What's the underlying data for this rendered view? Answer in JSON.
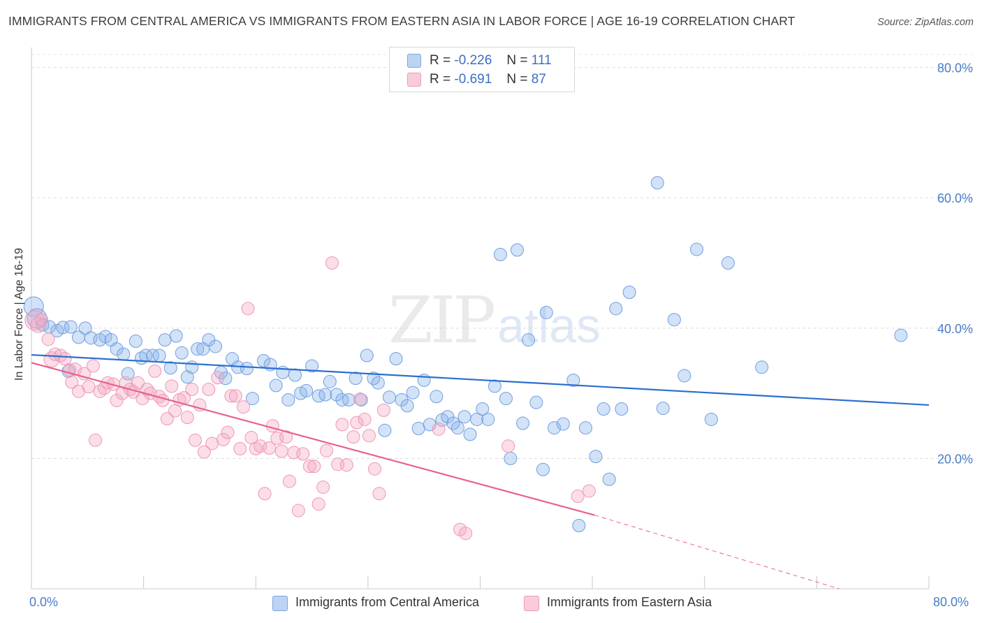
{
  "header": {
    "title": "IMMIGRANTS FROM CENTRAL AMERICA VS IMMIGRANTS FROM EASTERN ASIA IN LABOR FORCE | AGE 16-19 CORRELATION CHART",
    "source": "Source: ZipAtlas.com"
  },
  "watermark": {
    "zip": "ZIP",
    "atlas": "atlas"
  },
  "legend": {
    "r_label": "R =",
    "n_label": "N =",
    "rows": [
      {
        "r": "-0.226",
        "n": "111"
      },
      {
        "r": "-0.691",
        "n": "87"
      }
    ]
  },
  "chart_data": {
    "type": "scatter",
    "title": "IMMIGRANTS FROM CENTRAL AMERICA VS IMMIGRANTS FROM EASTERN ASIA IN LABOR FORCE | AGE 16-19 CORRELATION CHART",
    "xlabel": "",
    "ylabel": "In Labor Force | Age 16-19",
    "xlim": [
      0,
      80
    ],
    "ylim": [
      0,
      82
    ],
    "x_tick_labels": [
      "0.0%",
      "80.0%"
    ],
    "y_ticks": [
      20,
      40,
      60,
      80
    ],
    "y_tick_labels": [
      "20.0%",
      "40.0%",
      "60.0%",
      "80.0%"
    ],
    "grid": true,
    "legend_position": "top-center",
    "colors": {
      "central_america": "#8ab4ea",
      "eastern_asia": "#f4a7c0",
      "trend_central_america": "#2b6fcf",
      "trend_eastern_asia": "#e8618c",
      "tick_text": "#4a7cc7"
    },
    "series": [
      {
        "name": "Immigrants from Central America",
        "r": -0.226,
        "n": 111,
        "trend": {
          "x0": 0,
          "y0": 35.9,
          "x1": 80,
          "y1": 28.2
        },
        "points": [
          [
            0.2,
            43.3
          ],
          [
            0.5,
            41.5
          ],
          [
            1.0,
            40.5
          ],
          [
            1.6,
            40.2
          ],
          [
            2.3,
            39.6
          ],
          [
            2.8,
            40.1
          ],
          [
            3.3,
            33.4
          ],
          [
            3.5,
            40.2
          ],
          [
            4.2,
            38.6
          ],
          [
            4.8,
            40.0
          ],
          [
            5.3,
            38.5
          ],
          [
            6.1,
            38.2
          ],
          [
            6.6,
            38.7
          ],
          [
            7.1,
            38.2
          ],
          [
            7.6,
            36.8
          ],
          [
            8.2,
            36.0
          ],
          [
            8.6,
            33.0
          ],
          [
            9.3,
            38.0
          ],
          [
            9.8,
            35.4
          ],
          [
            10.2,
            35.8
          ],
          [
            10.8,
            35.8
          ],
          [
            11.4,
            35.8
          ],
          [
            11.9,
            38.2
          ],
          [
            12.4,
            33.9
          ],
          [
            12.9,
            38.8
          ],
          [
            13.4,
            36.2
          ],
          [
            13.9,
            32.5
          ],
          [
            14.3,
            34.0
          ],
          [
            14.8,
            36.8
          ],
          [
            15.3,
            36.8
          ],
          [
            15.8,
            38.2
          ],
          [
            16.4,
            37.2
          ],
          [
            16.9,
            33.2
          ],
          [
            17.3,
            32.3
          ],
          [
            17.9,
            35.3
          ],
          [
            18.4,
            34.0
          ],
          [
            19.2,
            33.8
          ],
          [
            19.7,
            29.2
          ],
          [
            20.7,
            35.0
          ],
          [
            21.3,
            34.4
          ],
          [
            21.8,
            31.2
          ],
          [
            22.4,
            33.2
          ],
          [
            22.9,
            29.0
          ],
          [
            23.5,
            32.8
          ],
          [
            24.0,
            30.0
          ],
          [
            24.5,
            30.4
          ],
          [
            25.0,
            34.2
          ],
          [
            25.6,
            29.6
          ],
          [
            26.2,
            29.8
          ],
          [
            26.6,
            31.8
          ],
          [
            27.2,
            29.8
          ],
          [
            27.7,
            29.0
          ],
          [
            28.3,
            29.0
          ],
          [
            28.9,
            32.3
          ],
          [
            29.4,
            29.0
          ],
          [
            29.9,
            35.8
          ],
          [
            30.5,
            32.3
          ],
          [
            30.9,
            31.6
          ],
          [
            31.5,
            24.3
          ],
          [
            31.9,
            29.4
          ],
          [
            32.5,
            35.3
          ],
          [
            33.0,
            29.0
          ],
          [
            33.5,
            28.1
          ],
          [
            34.0,
            30.1
          ],
          [
            34.5,
            24.6
          ],
          [
            35.0,
            32.0
          ],
          [
            35.5,
            25.2
          ],
          [
            36.1,
            29.5
          ],
          [
            36.6,
            25.9
          ],
          [
            37.1,
            26.4
          ],
          [
            37.6,
            25.4
          ],
          [
            38.0,
            24.7
          ],
          [
            38.6,
            26.4
          ],
          [
            39.1,
            23.7
          ],
          [
            39.7,
            26.0
          ],
          [
            40.2,
            27.6
          ],
          [
            40.7,
            26.0
          ],
          [
            41.3,
            31.1
          ],
          [
            41.8,
            51.3
          ],
          [
            42.3,
            29.2
          ],
          [
            42.7,
            20.0
          ],
          [
            43.3,
            52.0
          ],
          [
            43.8,
            25.4
          ],
          [
            44.3,
            38.2
          ],
          [
            45.0,
            28.6
          ],
          [
            45.6,
            18.3
          ],
          [
            45.9,
            42.4
          ],
          [
            46.6,
            24.7
          ],
          [
            47.4,
            25.3
          ],
          [
            48.3,
            32.0
          ],
          [
            48.8,
            9.7
          ],
          [
            49.4,
            24.7
          ],
          [
            50.3,
            20.3
          ],
          [
            51.0,
            27.6
          ],
          [
            51.5,
            16.8
          ],
          [
            52.1,
            43.0
          ],
          [
            52.6,
            27.6
          ],
          [
            53.3,
            45.5
          ],
          [
            55.8,
            62.3
          ],
          [
            56.3,
            27.7
          ],
          [
            57.3,
            41.3
          ],
          [
            58.2,
            32.7
          ],
          [
            59.3,
            52.1
          ],
          [
            60.6,
            26.0
          ],
          [
            62.1,
            50.0
          ],
          [
            65.1,
            34.0
          ],
          [
            77.5,
            38.9
          ]
        ],
        "sizes": {
          "0.2": "large",
          "0.5": "large",
          "1.0": "medium"
        }
      },
      {
        "name": "Immigrants from Eastern Asia",
        "r": -0.691,
        "n": 87,
        "trend": {
          "x0": 0,
          "y0": 34.7,
          "x1": 50.2,
          "y1": 11.3,
          "dashed_to_x": 72.0,
          "dashed_to_y": 0
        },
        "points": [
          [
            0.3,
            41.2
          ],
          [
            0.6,
            40.5
          ],
          [
            0.9,
            41.3
          ],
          [
            1.5,
            38.3
          ],
          [
            1.8,
            35.2
          ],
          [
            2.1,
            36.0
          ],
          [
            2.6,
            35.8
          ],
          [
            3.0,
            35.3
          ],
          [
            3.4,
            33.6
          ],
          [
            3.6,
            31.7
          ],
          [
            3.9,
            33.7
          ],
          [
            4.2,
            30.3
          ],
          [
            4.7,
            33.0
          ],
          [
            5.1,
            31.0
          ],
          [
            5.5,
            34.2
          ],
          [
            5.7,
            22.8
          ],
          [
            6.1,
            30.3
          ],
          [
            6.5,
            30.8
          ],
          [
            6.8,
            31.6
          ],
          [
            7.3,
            31.4
          ],
          [
            7.6,
            28.9
          ],
          [
            8.1,
            30.0
          ],
          [
            8.4,
            31.6
          ],
          [
            8.8,
            30.6
          ],
          [
            9.1,
            30.2
          ],
          [
            9.5,
            31.6
          ],
          [
            9.9,
            29.2
          ],
          [
            10.3,
            30.6
          ],
          [
            10.6,
            30.0
          ],
          [
            11.0,
            33.4
          ],
          [
            11.4,
            29.5
          ],
          [
            11.7,
            28.9
          ],
          [
            12.1,
            26.1
          ],
          [
            12.5,
            31.1
          ],
          [
            12.8,
            27.3
          ],
          [
            13.2,
            29.0
          ],
          [
            13.6,
            29.3
          ],
          [
            13.9,
            26.3
          ],
          [
            14.3,
            30.6
          ],
          [
            14.6,
            22.8
          ],
          [
            15.0,
            28.2
          ],
          [
            15.4,
            21.0
          ],
          [
            15.8,
            30.6
          ],
          [
            16.1,
            22.3
          ],
          [
            16.6,
            32.4
          ],
          [
            17.1,
            22.9
          ],
          [
            17.5,
            24.0
          ],
          [
            17.8,
            29.6
          ],
          [
            18.2,
            29.6
          ],
          [
            18.6,
            21.5
          ],
          [
            18.9,
            27.9
          ],
          [
            19.3,
            43.0
          ],
          [
            19.6,
            23.2
          ],
          [
            20.0,
            21.5
          ],
          [
            20.4,
            21.9
          ],
          [
            20.8,
            14.6
          ],
          [
            21.2,
            21.6
          ],
          [
            21.5,
            25.0
          ],
          [
            21.9,
            23.1
          ],
          [
            22.3,
            21.1
          ],
          [
            22.7,
            23.3
          ],
          [
            23.0,
            16.5
          ],
          [
            23.4,
            20.9
          ],
          [
            23.8,
            12.0
          ],
          [
            24.2,
            20.7
          ],
          [
            24.8,
            18.8
          ],
          [
            25.2,
            18.8
          ],
          [
            25.6,
            13.0
          ],
          [
            26.0,
            15.6
          ],
          [
            26.3,
            21.2
          ],
          [
            26.8,
            50.0
          ],
          [
            27.3,
            19.1
          ],
          [
            27.7,
            25.2
          ],
          [
            28.1,
            19.0
          ],
          [
            28.7,
            23.3
          ],
          [
            29.0,
            25.5
          ],
          [
            29.3,
            29.1
          ],
          [
            29.7,
            26.0
          ],
          [
            30.1,
            23.5
          ],
          [
            30.6,
            18.4
          ],
          [
            31.0,
            14.6
          ],
          [
            31.4,
            27.4
          ],
          [
            36.3,
            24.5
          ],
          [
            38.2,
            9.1
          ],
          [
            38.7,
            8.5
          ],
          [
            42.5,
            21.9
          ],
          [
            48.7,
            14.2
          ],
          [
            49.7,
            15.0
          ]
        ],
        "sizes": {
          "0.3": "large",
          "0.6": "medium",
          "1.8": "medium"
        }
      }
    ]
  },
  "bottom_legend": [
    {
      "label": "Immigrants from Central America"
    },
    {
      "label": "Immigrants from Eastern Asia"
    }
  ],
  "axis": {
    "y_label": "In Labor Force | Age 16-19",
    "x_min_label": "0.0%",
    "x_max_label": "80.0%"
  }
}
